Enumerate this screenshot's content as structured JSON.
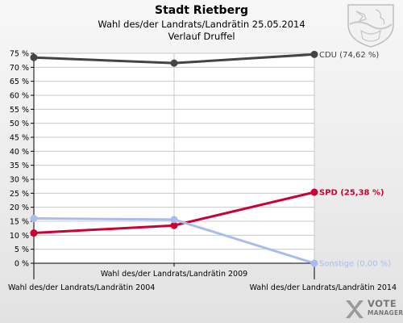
{
  "header": {
    "title": "Stadt Rietberg",
    "subtitle": "Wahl des/der Landrats/Landrätin 25.05.2014",
    "line3": "Verlauf Druffel"
  },
  "brand": {
    "line1": "VOTE",
    "line2": "MANAGER"
  },
  "colors": {
    "cdu": "#444444",
    "spd": "#cc0033",
    "sonstige": "#a8bdec"
  },
  "chart_data": {
    "type": "line",
    "categories": [
      "Wahl des/der Landrats/Landrätin 2004",
      "Wahl des/der Landrats/Landrätin 2009",
      "Wahl des/der Landrats/Landrätin 2014"
    ],
    "ylim": [
      0,
      75
    ],
    "yticks": [
      {
        "v": 0,
        "label": "0 %"
      },
      {
        "v": 5,
        "label": "5 %"
      },
      {
        "v": 10,
        "label": "10 %"
      },
      {
        "v": 15,
        "label": "15 %"
      },
      {
        "v": 20,
        "label": "20 %"
      },
      {
        "v": 25,
        "label": "25 %"
      },
      {
        "v": 30,
        "label": "30 %"
      },
      {
        "v": 35,
        "label": "35 %"
      },
      {
        "v": 40,
        "label": "40 %"
      },
      {
        "v": 45,
        "label": "45 %"
      },
      {
        "v": 50,
        "label": "50 %"
      },
      {
        "v": 55,
        "label": "55 %"
      },
      {
        "v": 60,
        "label": "60 %"
      },
      {
        "v": 65,
        "label": "65 %"
      },
      {
        "v": 70,
        "label": "70 %"
      },
      {
        "v": 75,
        "label": "75 %"
      }
    ],
    "series": [
      {
        "key": "cdu",
        "color": "#444444",
        "values": [
          73.5,
          71.5,
          74.62
        ],
        "label": "CDU (74,62 %)"
      },
      {
        "key": "spd",
        "color": "#cc0033",
        "values": [
          10.8,
          13.5,
          25.38
        ],
        "label": "SPD (25,38 %)"
      },
      {
        "key": "sonstige",
        "color": "#a8bdec",
        "values": [
          16.0,
          15.6,
          0.0
        ],
        "label": "Sonstige (0,00 %)"
      }
    ]
  }
}
